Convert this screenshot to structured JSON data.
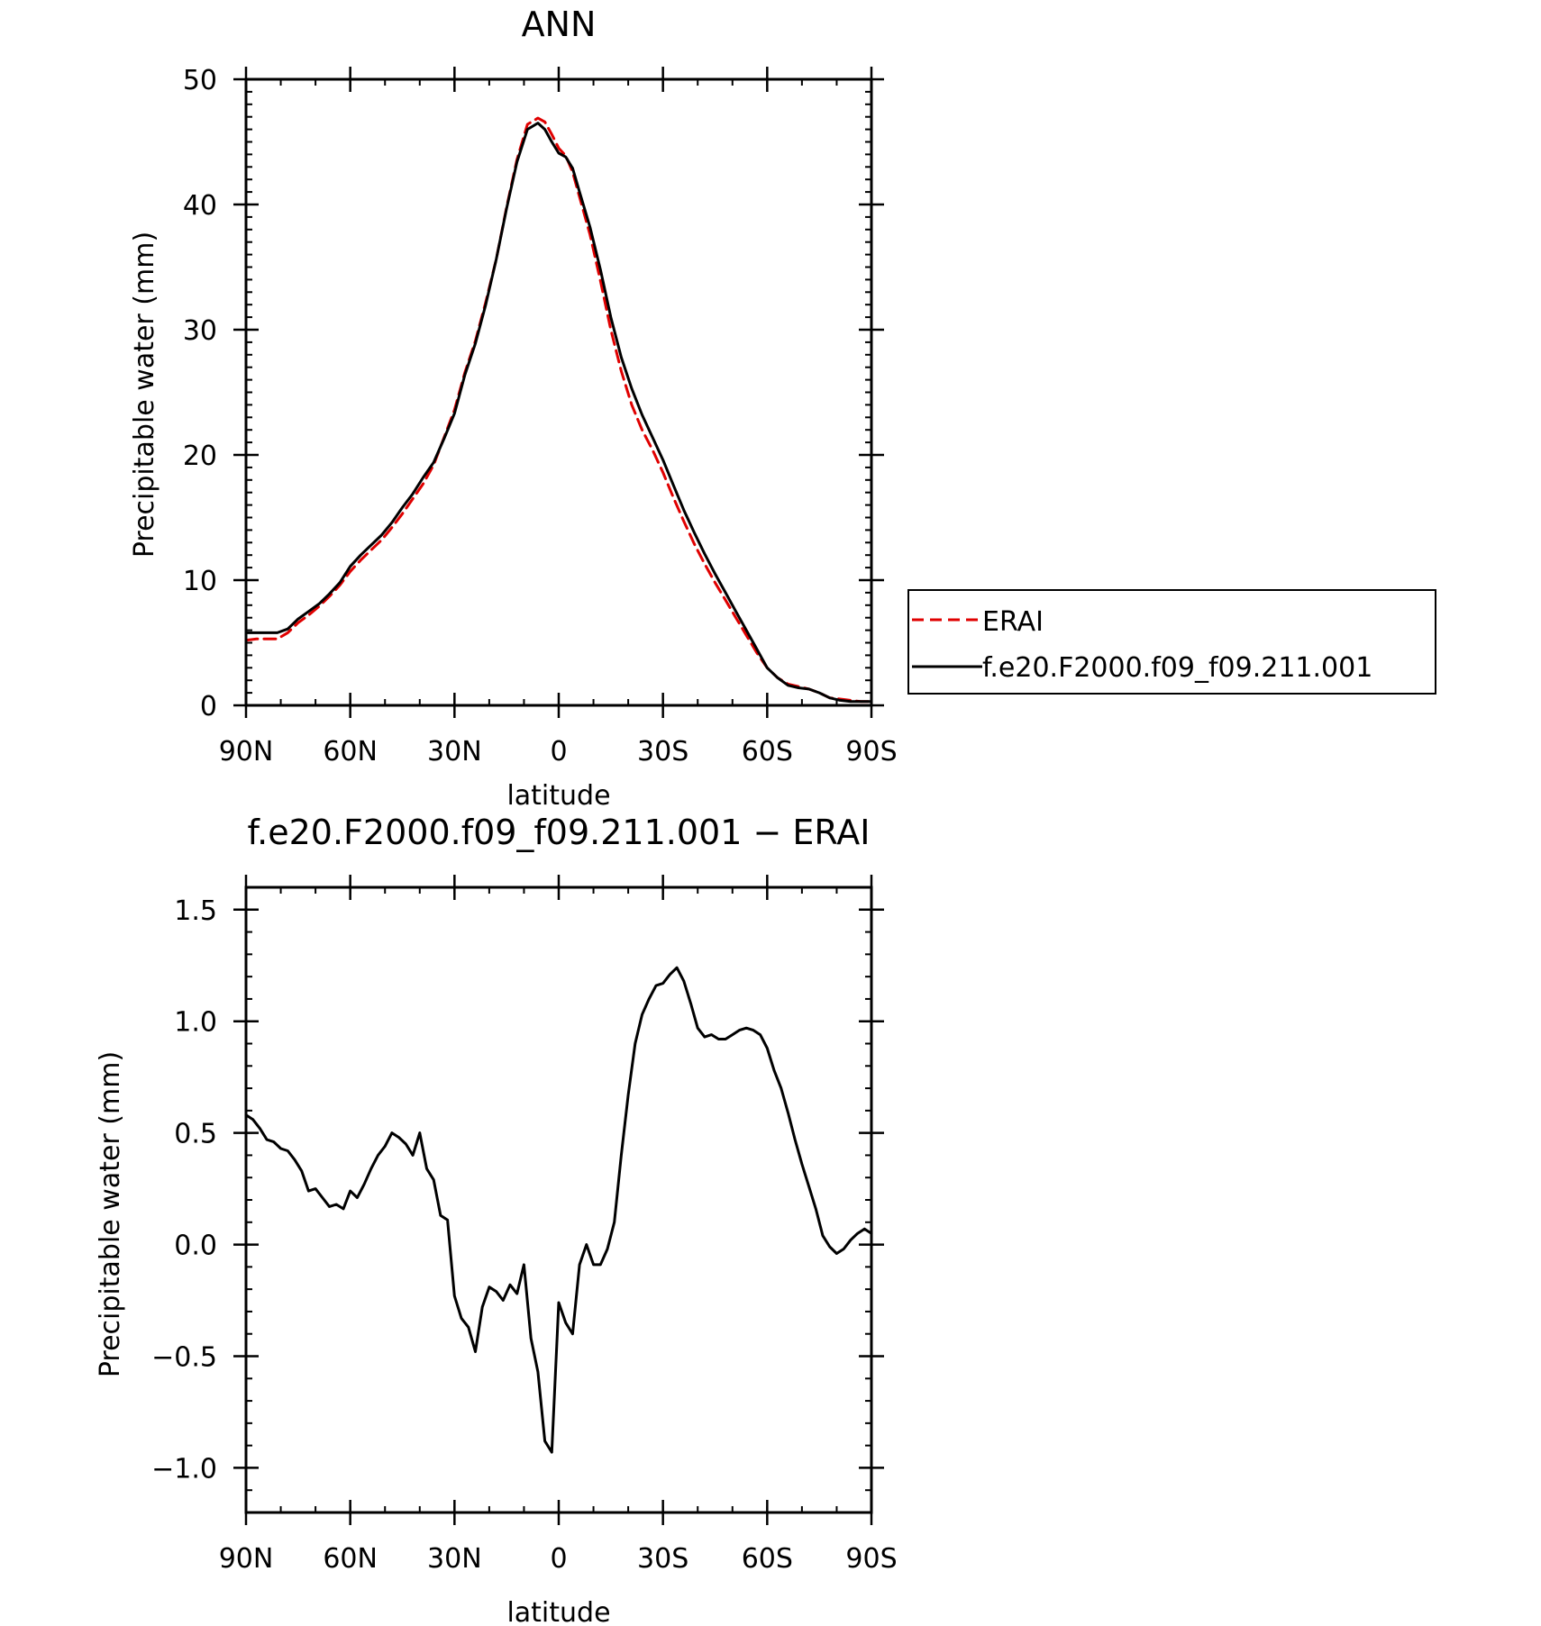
{
  "chart_data": [
    {
      "type": "line",
      "title": "ANN",
      "xlabel": "latitude",
      "ylabel": "Precipitable water (mm)",
      "x_ticks": [
        {
          "value": 90,
          "label": "90N"
        },
        {
          "value": 60,
          "label": "60N"
        },
        {
          "value": 30,
          "label": "30N"
        },
        {
          "value": 0,
          "label": "0"
        },
        {
          "value": -30,
          "label": "30S"
        },
        {
          "value": -60,
          "label": "60S"
        },
        {
          "value": -90,
          "label": "90S"
        }
      ],
      "xlim": [
        90,
        -90
      ],
      "ylim": [
        0,
        50
      ],
      "y_ticks": [
        {
          "value": 0,
          "label": "0"
        },
        {
          "value": 10,
          "label": "10"
        },
        {
          "value": 20,
          "label": "20"
        },
        {
          "value": 30,
          "label": "30"
        },
        {
          "value": 40,
          "label": "40"
        },
        {
          "value": 50,
          "label": "50"
        }
      ],
      "legend": {
        "placement": "right",
        "entries": [
          "ERAI",
          "f.e20.F2000.f09_f09.211.001"
        ]
      },
      "series": [
        {
          "name": "ERAI",
          "color": "#e00000",
          "dash": "dashed",
          "x": [
            90,
            87,
            84,
            81,
            78,
            75,
            72,
            69,
            66,
            63,
            60,
            57,
            54,
            51,
            48,
            45,
            42,
            39,
            36,
            33,
            30,
            27,
            24,
            21,
            18,
            15,
            12,
            9,
            6,
            4,
            2,
            0,
            -2,
            -4,
            -6,
            -9,
            -12,
            -15,
            -18,
            -21,
            -24,
            -27,
            -30,
            -33,
            -36,
            -39,
            -42,
            -45,
            -48,
            -51,
            -54,
            -57,
            -60,
            -63,
            -66,
            -69,
            -72,
            -75,
            -78,
            -81,
            -84,
            -87,
            -90
          ],
          "y": [
            5.2,
            5.3,
            5.3,
            5.3,
            5.8,
            6.6,
            7.2,
            7.9,
            8.7,
            9.6,
            10.7,
            11.6,
            12.4,
            13.2,
            14.2,
            15.3,
            16.5,
            17.7,
            19.2,
            21.4,
            23.6,
            26.6,
            29.1,
            32.2,
            35.6,
            39.8,
            43.6,
            46.4,
            46.9,
            46.6,
            45.6,
            44.5,
            43.9,
            42.6,
            40.6,
            37.6,
            33.9,
            30.0,
            26.7,
            24.0,
            22.0,
            20.4,
            18.6,
            16.6,
            14.7,
            12.9,
            11.3,
            9.8,
            8.4,
            7.0,
            5.6,
            4.2,
            3.0,
            2.2,
            1.7,
            1.5,
            1.3,
            1.0,
            0.6,
            0.5,
            0.4,
            0.3,
            0.3
          ]
        },
        {
          "name": "f.e20.F2000.f09_f09.211.001",
          "color": "#000000",
          "dash": "solid",
          "x": [
            90,
            87,
            84,
            81,
            78,
            75,
            72,
            69,
            66,
            63,
            60,
            57,
            54,
            51,
            48,
            45,
            42,
            39,
            36,
            33,
            30,
            27,
            24,
            21,
            18,
            15,
            12,
            9,
            6,
            4,
            2,
            0,
            -2,
            -4,
            -6,
            -9,
            -12,
            -15,
            -18,
            -21,
            -24,
            -27,
            -30,
            -33,
            -36,
            -39,
            -42,
            -45,
            -48,
            -51,
            -54,
            -57,
            -60,
            -63,
            -66,
            -69,
            -72,
            -75,
            -78,
            -81,
            -84,
            -87,
            -90
          ],
          "y": [
            5.8,
            5.8,
            5.8,
            5.8,
            6.1,
            6.9,
            7.5,
            8.1,
            8.9,
            9.8,
            11.1,
            12.0,
            12.8,
            13.6,
            14.6,
            15.8,
            16.9,
            18.2,
            19.4,
            21.3,
            23.3,
            26.4,
            28.9,
            32.0,
            35.6,
            39.7,
            43.4,
            46.0,
            46.5,
            46.0,
            45.0,
            44.1,
            43.8,
            42.9,
            41.0,
            38.2,
            34.8,
            31.0,
            27.8,
            25.3,
            23.2,
            21.4,
            19.6,
            17.6,
            15.6,
            13.8,
            12.1,
            10.5,
            9.0,
            7.5,
            6.0,
            4.5,
            3.0,
            2.2,
            1.6,
            1.4,
            1.3,
            1.0,
            0.6,
            0.4,
            0.3,
            0.3,
            0.3
          ]
        }
      ]
    },
    {
      "type": "line",
      "title": "f.e20.F2000.f09_f09.211.001 − ERAI",
      "xlabel": "latitude",
      "ylabel": "Precipitable water (mm)",
      "x_ticks": [
        {
          "value": 90,
          "label": "90N"
        },
        {
          "value": 60,
          "label": "60N"
        },
        {
          "value": 30,
          "label": "30N"
        },
        {
          "value": 0,
          "label": "0"
        },
        {
          "value": -30,
          "label": "30S"
        },
        {
          "value": -60,
          "label": "60S"
        },
        {
          "value": -90,
          "label": "90S"
        }
      ],
      "xlim": [
        90,
        -90
      ],
      "ylim": [
        -1.2,
        1.6
      ],
      "y_ticks": [
        {
          "value": -1.0,
          "label": "−1.0"
        },
        {
          "value": -0.5,
          "label": "−0.5"
        },
        {
          "value": 0.0,
          "label": "0.0"
        },
        {
          "value": 0.5,
          "label": "0.5"
        },
        {
          "value": 1.0,
          "label": "1.0"
        },
        {
          "value": 1.5,
          "label": "1.5"
        }
      ],
      "series": [
        {
          "color": "#000000",
          "dash": "solid",
          "x": [
            90,
            88,
            86,
            84,
            82,
            80,
            78,
            76,
            74,
            72,
            70,
            68,
            66,
            64,
            62,
            60,
            58,
            56,
            54,
            52,
            50,
            48,
            46,
            44,
            42,
            40,
            38,
            36,
            34,
            32,
            30,
            28,
            26,
            24,
            22,
            20,
            18,
            16,
            14,
            12,
            10,
            8,
            6,
            4,
            2,
            0,
            -2,
            -4,
            -6,
            -8,
            -10,
            -12,
            -14,
            -16,
            -18,
            -20,
            -22,
            -24,
            -26,
            -28,
            -30,
            -32,
            -34,
            -36,
            -38,
            -40,
            -42,
            -44,
            -46,
            -48,
            -50,
            -52,
            -54,
            -56,
            -58,
            -60,
            -62,
            -64,
            -66,
            -68,
            -70,
            -72,
            -74,
            -76,
            -78,
            -80,
            -82,
            -84,
            -86,
            -88,
            -90
          ],
          "y": [
            0.58,
            0.56,
            0.52,
            0.47,
            0.46,
            0.43,
            0.42,
            0.38,
            0.33,
            0.24,
            0.25,
            0.21,
            0.17,
            0.18,
            0.16,
            0.24,
            0.21,
            0.27,
            0.34,
            0.4,
            0.44,
            0.5,
            0.48,
            0.45,
            0.4,
            0.5,
            0.34,
            0.29,
            0.13,
            0.11,
            -0.23,
            -0.33,
            -0.37,
            -0.48,
            -0.28,
            -0.19,
            -0.21,
            -0.25,
            -0.18,
            -0.22,
            -0.09,
            -0.42,
            -0.57,
            -0.88,
            -0.93,
            -0.26,
            -0.35,
            -0.4,
            -0.09,
            0.0,
            -0.09,
            -0.09,
            -0.02,
            0.1,
            0.4,
            0.67,
            0.9,
            1.03,
            1.1,
            1.16,
            1.17,
            1.21,
            1.24,
            1.18,
            1.08,
            0.97,
            0.93,
            0.94,
            0.92,
            0.92,
            0.94,
            0.96,
            0.97,
            0.96,
            0.94,
            0.88,
            0.78,
            0.7,
            0.59,
            0.47,
            0.36,
            0.26,
            0.16,
            0.04,
            -0.01,
            -0.04,
            -0.02,
            0.02,
            0.05,
            0.07,
            0.05
          ]
        }
      ]
    }
  ]
}
